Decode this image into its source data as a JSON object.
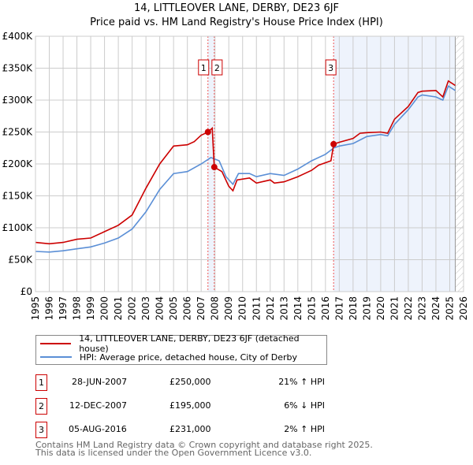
{
  "chart_data": {
    "type": "line",
    "title": "14, LITTLEOVER LANE, DERBY, DE23 6JF",
    "subtitle": "Price paid vs. HM Land Registry's House Price Index (HPI)",
    "xlim": [
      1995,
      2026
    ],
    "ylim": [
      0,
      400000
    ],
    "y_ticks": [
      {
        "v": 0,
        "label": "£0"
      },
      {
        "v": 50000,
        "label": "£50K"
      },
      {
        "v": 100000,
        "label": "£100K"
      },
      {
        "v": 150000,
        "label": "£150K"
      },
      {
        "v": 200000,
        "label": "£200K"
      },
      {
        "v": 250000,
        "label": "£250K"
      },
      {
        "v": 300000,
        "label": "£300K"
      },
      {
        "v": 350000,
        "label": "£350K"
      },
      {
        "v": 400000,
        "label": "£400K"
      }
    ],
    "x_ticks": [
      "1995",
      "1996",
      "1997",
      "1998",
      "1999",
      "2000",
      "2001",
      "2002",
      "2003",
      "2004",
      "2005",
      "2006",
      "2007",
      "2008",
      "2009",
      "2010",
      "2011",
      "2012",
      "2013",
      "2014",
      "2015",
      "2016",
      "2017",
      "2018",
      "2019",
      "2020",
      "2021",
      "2022",
      "2023",
      "2024",
      "2025",
      "2026"
    ],
    "grid": true,
    "series": [
      {
        "name": "14, LITTLEOVER LANE, DERBY, DE23 6JF (detached house)",
        "color": "#cc0000",
        "x": [
          1995,
          1996,
          1997,
          1998,
          1999,
          2000,
          2001,
          2002,
          2003,
          2004,
          2005,
          2006,
          2006.5,
          2007,
          2007.5,
          2007.8,
          2007.95,
          2008.5,
          2009,
          2009.3,
          2009.6,
          2010.5,
          2011,
          2012,
          2012.3,
          2013,
          2014,
          2015,
          2015.5,
          2016.4,
          2016.6,
          2017,
          2018,
          2018.5,
          2019,
          2020,
          2020.5,
          2021,
          2022,
          2022.7,
          2023,
          2024,
          2024.5,
          2024.9,
          2025.4
        ],
        "y": [
          77000,
          75000,
          77000,
          82000,
          84000,
          94000,
          104000,
          120000,
          162000,
          200000,
          228000,
          230000,
          235000,
          245000,
          250000,
          256000,
          195000,
          188000,
          165000,
          158000,
          175000,
          178000,
          170000,
          175000,
          170000,
          172000,
          180000,
          190000,
          198000,
          205000,
          231000,
          234000,
          240000,
          248000,
          249000,
          250000,
          248000,
          270000,
          290000,
          312000,
          314000,
          315000,
          305000,
          330000,
          323000
        ]
      },
      {
        "name": "HPI: Average price, detached house, City of Derby",
        "color": "#5b8fd6",
        "x": [
          1995,
          1996,
          1997,
          1998,
          1999,
          2000,
          2001,
          2002,
          2003,
          2004,
          2005,
          2006,
          2007,
          2007.7,
          2008.3,
          2008.8,
          2009.3,
          2009.7,
          2010.5,
          2011,
          2012,
          2013,
          2014,
          2015,
          2016,
          2016.6,
          2017,
          2018,
          2019,
          2020,
          2020.5,
          2021,
          2022,
          2022.7,
          2023,
          2024,
          2024.5,
          2024.9,
          2025.4
        ],
        "y": [
          63000,
          62000,
          64000,
          67000,
          70000,
          76000,
          84000,
          98000,
          125000,
          160000,
          185000,
          188000,
          200000,
          210000,
          205000,
          180000,
          168000,
          185000,
          185000,
          180000,
          185000,
          182000,
          192000,
          205000,
          215000,
          225000,
          228000,
          232000,
          243000,
          246000,
          244000,
          262000,
          285000,
          305000,
          308000,
          305000,
          300000,
          322000,
          315000
        ]
      }
    ],
    "sales": [
      {
        "n": "1",
        "x": 2007.49,
        "y": 250000,
        "date": "28-JUN-2007",
        "price": "£250,000",
        "hpi": "21% ↑ HPI"
      },
      {
        "n": "2",
        "x": 2007.95,
        "y": 195000,
        "date": "12-DEC-2007",
        "price": "£195,000",
        "hpi": "6% ↓ HPI"
      },
      {
        "n": "3",
        "x": 2016.59,
        "y": 231000,
        "date": "05-AUG-2016",
        "price": "£231,000",
        "hpi": "2% ↑ HPI"
      }
    ],
    "shaded": [
      [
        2007.49,
        2007.95
      ],
      [
        2016.59,
        2025.4
      ]
    ],
    "hatch_from": 2025.4
  },
  "footer": {
    "line1": "Contains HM Land Registry data © Crown copyright and database right 2025.",
    "line2": "This data is licensed under the Open Government Licence v3.0."
  }
}
